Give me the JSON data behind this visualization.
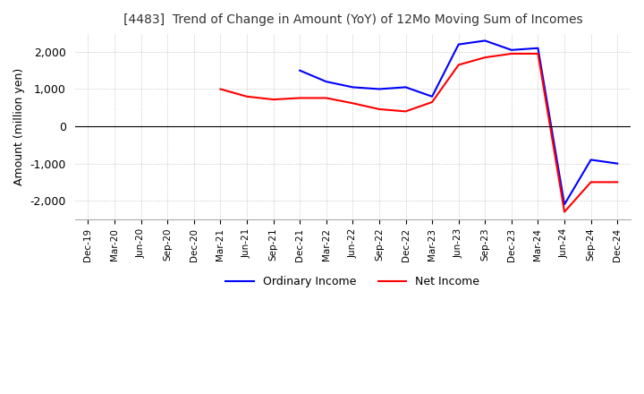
{
  "title": "[4483]  Trend of Change in Amount (YoY) of 12Mo Moving Sum of Incomes",
  "ylabel": "Amount (million yen)",
  "x_labels": [
    "Dec-19",
    "Mar-20",
    "Jun-20",
    "Sep-20",
    "Dec-20",
    "Mar-21",
    "Jun-21",
    "Sep-21",
    "Dec-21",
    "Mar-22",
    "Jun-22",
    "Sep-22",
    "Dec-22",
    "Mar-23",
    "Jun-23",
    "Sep-23",
    "Dec-23",
    "Mar-24",
    "Jun-24",
    "Sep-24",
    "Dec-24"
  ],
  "ordinary_income": [
    null,
    null,
    null,
    null,
    null,
    null,
    null,
    null,
    1500,
    1200,
    1050,
    1000,
    1050,
    800,
    2200,
    2300,
    2050,
    2100,
    -2100,
    -900,
    -1000
  ],
  "net_income": [
    null,
    null,
    null,
    null,
    null,
    1000,
    800,
    720,
    760,
    760,
    620,
    460,
    400,
    650,
    1650,
    1850,
    1950,
    1950,
    -2300,
    -1500,
    -1500
  ],
  "ordinary_color": "#0000ff",
  "net_color": "#ff0000",
  "ylim": [
    -2500,
    2500
  ],
  "yticks": [
    -2000,
    -1000,
    0,
    1000,
    2000
  ],
  "grid_color": "#aaaaaa",
  "background_color": "#ffffff",
  "legend_labels": [
    "Ordinary Income",
    "Net Income"
  ]
}
